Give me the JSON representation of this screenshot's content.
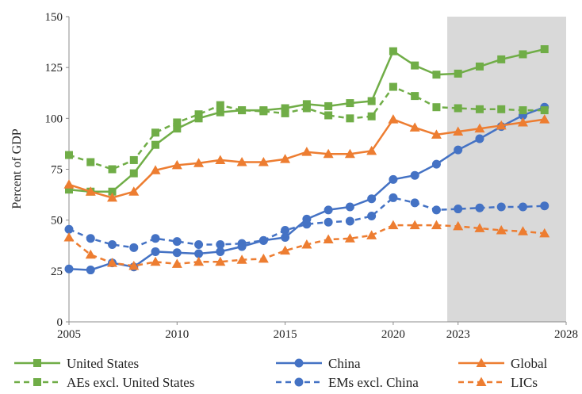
{
  "chart_data": {
    "type": "line",
    "title": "",
    "xlabel": "",
    "ylabel": "Percent of GDP",
    "xlim": [
      2005,
      2028
    ],
    "ylim": [
      0,
      150
    ],
    "x_ticks": [
      2005,
      2010,
      2015,
      2020,
      2023,
      2028
    ],
    "y_ticks": [
      0,
      25,
      50,
      75,
      100,
      125,
      150
    ],
    "grid": false,
    "projection_shading": {
      "from": 2022.5,
      "to": 2028
    },
    "legend_position": "bottom",
    "x": [
      2005,
      2006,
      2007,
      2008,
      2009,
      2010,
      2011,
      2012,
      2013,
      2014,
      2015,
      2016,
      2017,
      2018,
      2019,
      2020,
      2021,
      2022,
      2023,
      2024,
      2025,
      2026,
      2027,
      2028
    ],
    "series": [
      {
        "name": "United States",
        "color": "#70ad47",
        "dash": "solid",
        "marker": "square",
        "values": [
          65,
          64,
          64,
          73,
          87,
          95,
          100,
          103,
          104,
          104,
          105,
          107,
          106,
          107.5,
          108.5,
          133,
          126,
          121.5,
          122,
          125.5,
          129,
          131.5,
          134,
          null
        ]
      },
      {
        "name": "China",
        "color": "#4472c4",
        "dash": "solid",
        "marker": "circle",
        "values": [
          26,
          25.5,
          29,
          27,
          34.5,
          34,
          33.5,
          34.5,
          37,
          40,
          41.5,
          50.5,
          55,
          56.5,
          60.5,
          70,
          72,
          77.5,
          84.5,
          90,
          96,
          101.5,
          105.5,
          null
        ]
      },
      {
        "name": "Global",
        "color": "#ed7d31",
        "dash": "solid",
        "marker": "triangle",
        "values": [
          67.5,
          64,
          61,
          64,
          74.5,
          77,
          78,
          79.5,
          78.5,
          78.5,
          80,
          83.5,
          82.5,
          82.5,
          84,
          99.5,
          95.5,
          92,
          93.5,
          95,
          96.5,
          98,
          99.5,
          null
        ]
      },
      {
        "name": "AEs excl. United States",
        "color": "#70ad47",
        "dash": "dashed",
        "marker": "square",
        "values": [
          82,
          78.5,
          75,
          79.5,
          93,
          98,
          102,
          106.5,
          104,
          103.5,
          102.5,
          105,
          101.5,
          100,
          101,
          115.5,
          111,
          105.5,
          105,
          104.5,
          104.5,
          104,
          104,
          null
        ]
      },
      {
        "name": "EMs excl. China",
        "color": "#4472c4",
        "dash": "dashed",
        "marker": "circle",
        "values": [
          45.5,
          41,
          38,
          36.5,
          41,
          39.5,
          38,
          38,
          38.5,
          40,
          45,
          48,
          49,
          49.5,
          52,
          61,
          58.5,
          55,
          55.5,
          56,
          56.5,
          56.5,
          57,
          null
        ]
      },
      {
        "name": "LICs",
        "color": "#ed7d31",
        "dash": "dashed",
        "marker": "triangle",
        "values": [
          41.5,
          33,
          29,
          27.5,
          29.5,
          28.5,
          29.5,
          29.5,
          30.5,
          31,
          35,
          38,
          40.5,
          41,
          42.5,
          47.5,
          47.5,
          47.5,
          47,
          46,
          45,
          44.5,
          43.5,
          null
        ]
      }
    ]
  }
}
